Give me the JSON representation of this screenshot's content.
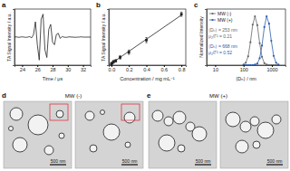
{
  "chart_data": [
    {
      "type": "line",
      "title": "a",
      "x_label": "Time / μs",
      "y_label": "TA Signal Intensity / a.u.",
      "x": [
        23,
        23.25,
        23.5,
        23.75,
        24,
        24.25,
        24.5,
        24.75,
        25,
        25.25,
        25.5,
        25.75,
        26,
        26.25,
        26.5,
        26.75,
        27,
        27.25,
        27.5,
        27.75,
        28,
        28.25,
        28.5,
        28.75,
        29,
        29.25,
        29.5,
        29.75,
        30,
        30.25,
        30.5,
        30.75,
        31,
        31.25,
        31.5,
        31.75,
        32,
        32.25,
        32.5,
        32.75,
        33
      ],
      "values": [
        0,
        0.01,
        -0.01,
        0,
        0.01,
        0,
        -0.01,
        0,
        0.02,
        -0.03,
        0.1,
        0.6,
        -0.3,
        -0.9,
        0.7,
        0.9,
        -0.5,
        -0.8,
        0.3,
        0.5,
        -0.2,
        -0.3,
        0.1,
        0.15,
        -0.05,
        0.02,
        0,
        -0.01,
        0,
        0.01,
        0,
        0,
        -0.01,
        0,
        0,
        0.01,
        0,
        0,
        0,
        0,
        0
      ],
      "color": "#222222",
      "xlim": [
        23,
        33
      ],
      "xticks": [
        24,
        26,
        28,
        30,
        32
      ],
      "ylim": [
        -1.1,
        1.1
      ],
      "yticks": [],
      "tick_labels": "x"
    },
    {
      "type": "scatter",
      "title": "b",
      "x_label": "Concentration / mg mL⁻¹",
      "y_label": "TA Signal Intensity / a.u.",
      "x": [
        0,
        0.01,
        0.025,
        0.05,
        0.1,
        0.2,
        0.4,
        0.8
      ],
      "series": [
        {
          "type": "scatter",
          "marker": "square",
          "color": "#222222",
          "values": [
            3,
            5,
            8,
            10,
            18,
            30,
            58,
            118
          ],
          "errors": [
            2,
            2,
            3,
            3,
            4,
            5,
            6,
            5
          ]
        },
        {
          "type": "line",
          "color": "#222222",
          "values": [
            4,
            5.4,
            7.5,
            11,
            18,
            32,
            60,
            116
          ]
        }
      ],
      "xlim": [
        -0.03,
        0.85
      ],
      "xticks": [
        {
          "value": 0,
          "label": "0.0"
        },
        0.2,
        0.4,
        0.6,
        0.8
      ],
      "ylim": [
        0,
        130
      ],
      "yticks": [],
      "tick_labels": "x"
    },
    {
      "type": "line",
      "title": "c",
      "x_label": "⟨Dₕ⟩ / nm",
      "y_label": "Normalized Intensity",
      "log": "x",
      "marker": "circle",
      "legend": "top-left",
      "x": [
        100,
        120,
        145,
        175,
        210,
        253,
        305,
        370,
        445,
        540,
        650,
        790,
        950,
        1150,
        1400,
        1700
      ],
      "series": [
        {
          "name": "MW (-)",
          "color": "#666666",
          "values": [
            0.01,
            0.05,
            0.18,
            0.47,
            0.83,
            1,
            0.82,
            0.45,
            0.17,
            0.04,
            0.01,
            0,
            0,
            0,
            0,
            0
          ]
        },
        {
          "name": "MW (+)",
          "color": "#2a5db0",
          "values": [
            0,
            0,
            0,
            0,
            0,
            0.01,
            0.03,
            0.14,
            0.4,
            0.78,
            1,
            0.85,
            0.5,
            0.19,
            0.05,
            0.01
          ]
        }
      ],
      "annotations": [
        "⟨Dₕ⟩ = 253 nm",
        "μ₂/Γ² = 0.21",
        "⟨Dₕ⟩ = 668 nm",
        "μ₂/Γ² = 0.52"
      ],
      "xlim": [
        5,
        3000
      ],
      "xticks": [
        10,
        100,
        1000
      ],
      "ylim": [
        0,
        1.15
      ],
      "yticks": [],
      "tick_labels": "x"
    }
  ],
  "images": [
    {
      "label": "d",
      "title": "MW (-)",
      "frames": [
        {
          "scale_bar": "500 nm"
        },
        {
          "scale_bar": "500 nm"
        }
      ]
    },
    {
      "label": "e",
      "title": "MW (+)",
      "frames": [
        {
          "scale_bar": "500 nm"
        },
        {
          "scale_bar": "500 nm"
        }
      ]
    }
  ]
}
